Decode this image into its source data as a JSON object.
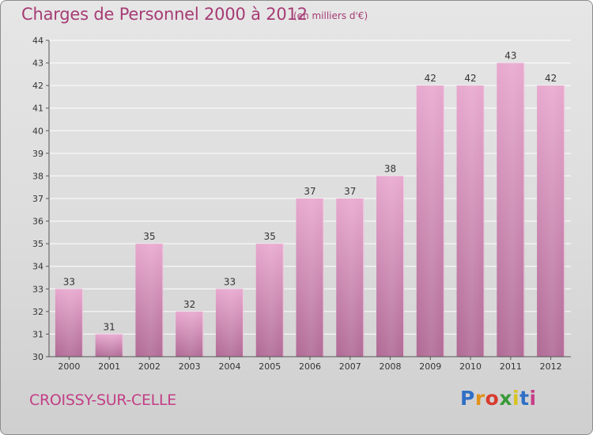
{
  "header": {
    "title": "Charges de Personnel 2000 à 2012",
    "subtitle": "(en milliers d'€)"
  },
  "footer": {
    "city": "CROISSY-SUR-CELLE",
    "logo_text": "Proxiti"
  },
  "colors": {
    "title": "#a63b74",
    "city": "#c23f85",
    "bar_top": "#e8a8cf",
    "bar_bottom": "#b06a95",
    "grid": "#ffffff"
  },
  "chart_data": {
    "type": "bar",
    "title": "Charges de Personnel 2000 à 2012",
    "subtitle": "(en milliers d'€)",
    "xlabel": "",
    "ylabel": "",
    "categories": [
      "2000",
      "2001",
      "2002",
      "2003",
      "2004",
      "2005",
      "2006",
      "2007",
      "2008",
      "2009",
      "2010",
      "2011",
      "2012"
    ],
    "values": [
      33,
      31,
      35,
      32,
      33,
      35,
      37,
      37,
      38,
      42,
      42,
      43,
      42
    ],
    "data_labels": [
      "33",
      "31",
      "35",
      "32",
      "33",
      "35",
      "37",
      "37",
      "38",
      "42",
      "42",
      "43",
      "42"
    ],
    "ylim": [
      30,
      44
    ],
    "yticks": [
      "30",
      "31",
      "32",
      "33",
      "34",
      "35",
      "36",
      "37",
      "38",
      "39",
      "40",
      "41",
      "42",
      "43",
      "44"
    ],
    "grid": true,
    "legend": "none"
  }
}
